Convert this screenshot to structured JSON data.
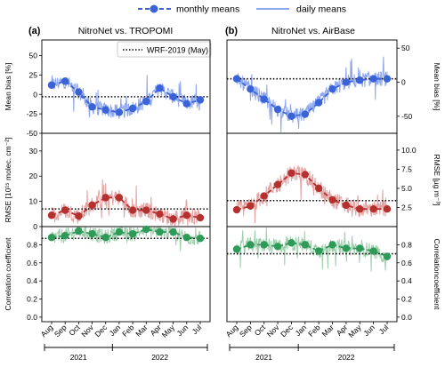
{
  "legend": {
    "monthly_label": "monthly means",
    "daily_label": "daily means"
  },
  "chart_data": [
    {
      "type": "line",
      "panel": "a",
      "title": "NitroNet vs. TROPOMI",
      "colors": {
        "daily": "#8ea7ee",
        "monthly": "#3a63d8"
      },
      "xlabel": "",
      "ylabel": "Mean bias [%]",
      "ylim": [
        -50,
        70
      ],
      "yticks": [
        -50,
        -25,
        0,
        25,
        50
      ],
      "reference": {
        "name": "WRF-2019 (May)",
        "value": -3
      },
      "categories": [
        "Aug",
        "Sep",
        "Oct",
        "Nov",
        "Dec",
        "Jan",
        "Feb",
        "Mar",
        "Apr",
        "May",
        "Jun",
        "Jul"
      ],
      "series": [
        {
          "name": "monthly means",
          "values": [
            12,
            17,
            3,
            -16,
            -20,
            -23,
            -18,
            -9,
            8,
            -3,
            -12,
            -7
          ]
        }
      ]
    },
    {
      "type": "line",
      "panel": "a",
      "colors": {
        "daily": "#e4a3a3",
        "monthly": "#b5312f"
      },
      "ylabel": "RMSE [10¹⁵ molec. cm⁻²]",
      "ylim": [
        0,
        37
      ],
      "yticks": [
        0,
        10,
        20,
        30
      ],
      "reference": {
        "value": 7
      },
      "categories": [
        "Aug",
        "Sep",
        "Oct",
        "Nov",
        "Dec",
        "Jan",
        "Feb",
        "Mar",
        "Apr",
        "May",
        "Jun",
        "Jul"
      ],
      "series": [
        {
          "name": "monthly means",
          "values": [
            4.5,
            6.5,
            4.2,
            8.5,
            11.5,
            11.5,
            6.5,
            6.5,
            5.0,
            3.0,
            4.5,
            3.5
          ]
        }
      ]
    },
    {
      "type": "line",
      "panel": "a",
      "colors": {
        "daily": "#9fcfae",
        "monthly": "#2e9a57"
      },
      "ylabel": "Correlation coefficient",
      "ylim": [
        -0.05,
        1.0
      ],
      "yticks": [
        0.0,
        0.2,
        0.4,
        0.6,
        0.8
      ],
      "reference": {
        "value": 0.87
      },
      "categories": [
        "Aug",
        "Sep",
        "Oct",
        "Nov",
        "Dec",
        "Jan",
        "Feb",
        "Mar",
        "Apr",
        "May",
        "Jun",
        "Jul"
      ],
      "series": [
        {
          "name": "monthly means",
          "values": [
            0.88,
            0.9,
            0.95,
            0.92,
            0.88,
            0.94,
            0.92,
            0.97,
            0.94,
            0.94,
            0.88,
            0.87
          ]
        }
      ]
    },
    {
      "type": "line",
      "panel": "b",
      "title": "NitroNet vs. AirBase",
      "colors": {
        "daily": "#8ea7ee",
        "monthly": "#3a63d8"
      },
      "ylabel": "Mean bias [%]",
      "ylim": [
        -75,
        62
      ],
      "yticks": [
        -50,
        0,
        50
      ],
      "reference": {
        "value": 5
      },
      "categories": [
        "Aug",
        "Sep",
        "Oct",
        "Nov",
        "Dec",
        "Jan",
        "Feb",
        "Mar",
        "Apr",
        "May",
        "Jun",
        "Jul"
      ],
      "series": [
        {
          "name": "monthly means",
          "values": [
            5,
            -10,
            -25,
            -40,
            -50,
            -47,
            -30,
            -10,
            0,
            3,
            5,
            5
          ]
        }
      ]
    },
    {
      "type": "line",
      "panel": "b",
      "colors": {
        "daily": "#e4a3a3",
        "monthly": "#b5312f"
      },
      "ylabel": "RMSE [µg m⁻³]",
      "ylim": [
        0,
        12.2
      ],
      "yticks": [
        2.5,
        5.0,
        7.5,
        10.0
      ],
      "reference": {
        "value": 3.4
      },
      "categories": [
        "Aug",
        "Sep",
        "Oct",
        "Nov",
        "Dec",
        "Jan",
        "Feb",
        "Mar",
        "Apr",
        "May",
        "Jun",
        "Jul"
      ],
      "series": [
        {
          "name": "monthly means",
          "values": [
            2.2,
            2.7,
            4.0,
            5.5,
            7.0,
            6.8,
            5.0,
            3.5,
            2.8,
            2.3,
            2.3,
            2.3
          ]
        }
      ]
    },
    {
      "type": "line",
      "panel": "b",
      "colors": {
        "daily": "#9fcfae",
        "monthly": "#2e9a57"
      },
      "ylabel": "Correlationcoefficient",
      "ylim": [
        -0.05,
        1.0
      ],
      "yticks": [
        0.0,
        0.2,
        0.4,
        0.6,
        0.8
      ],
      "reference": {
        "value": 0.7
      },
      "categories": [
        "Aug",
        "Sep",
        "Oct",
        "Nov",
        "Dec",
        "Jan",
        "Feb",
        "Mar",
        "Apr",
        "May",
        "Jun",
        "Jul"
      ],
      "series": [
        {
          "name": "monthly means",
          "values": [
            0.75,
            0.8,
            0.8,
            0.78,
            0.82,
            0.8,
            0.73,
            0.8,
            0.76,
            0.76,
            0.73,
            0.67
          ]
        }
      ]
    }
  ],
  "panels": [
    {
      "letter": "(a)",
      "title": "NitroNet vs. TROPOMI"
    },
    {
      "letter": "(b)",
      "title": "NitroNet vs. AirBase"
    }
  ],
  "x_axis": {
    "months": [
      "Aug",
      "Sep",
      "Oct",
      "Nov",
      "Dec",
      "Jan",
      "Feb",
      "Mar",
      "Apr",
      "May",
      "Jun",
      "Jul"
    ],
    "years": [
      "2021",
      "2022"
    ]
  }
}
